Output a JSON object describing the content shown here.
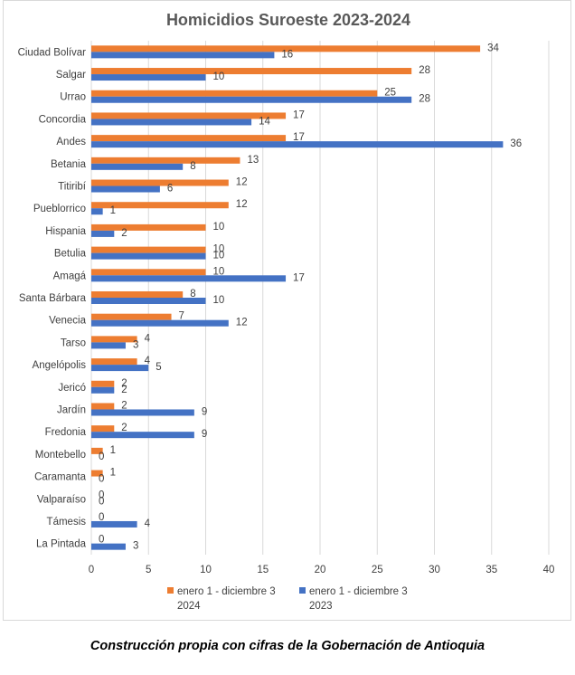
{
  "caption": "Construcción propia con cifras de la Gobernación de Antioquia",
  "colors": {
    "series_2024": "#ED7D31",
    "series_2023": "#4472C4",
    "grid": "#d9d9d9"
  },
  "chart_data": {
    "type": "bar",
    "orientation": "horizontal",
    "title": "Homicidios Suroeste 2023-2024",
    "xlabel": "",
    "ylabel": "",
    "xlim": [
      0,
      40
    ],
    "ticks": [
      "0",
      "5",
      "10",
      "15",
      "20",
      "25",
      "30",
      "35",
      "40"
    ],
    "grid": true,
    "legend_position": "bottom",
    "categories": [
      "Ciudad Bolívar",
      "Salgar",
      "Urrao",
      "Concordia",
      "Andes",
      "Betania",
      "Titiribí",
      "Pueblorrico",
      "Hispania",
      "Betulia",
      "Amagá",
      "Santa Bárbara",
      "Venecia",
      "Tarso",
      "Angelópolis",
      "Jericó",
      "Jardín",
      "Fredonia",
      "Montebello",
      "Caramanta",
      "Valparaíso",
      "Támesis",
      "La Pintada"
    ],
    "series": [
      {
        "name_line1": "enero 1 - diciembre 3",
        "name_line2": "2024",
        "values": [
          34,
          28,
          25,
          17,
          17,
          13,
          12,
          12,
          10,
          10,
          10,
          8,
          7,
          4,
          4,
          2,
          2,
          2,
          1,
          1,
          0,
          0,
          0
        ]
      },
      {
        "name_line1": "enero 1 - diciembre 3",
        "name_line2": "2023",
        "values": [
          16,
          10,
          28,
          14,
          36,
          8,
          6,
          1,
          2,
          10,
          17,
          10,
          12,
          3,
          5,
          2,
          9,
          9,
          0,
          0,
          0,
          4,
          3
        ]
      }
    ]
  }
}
